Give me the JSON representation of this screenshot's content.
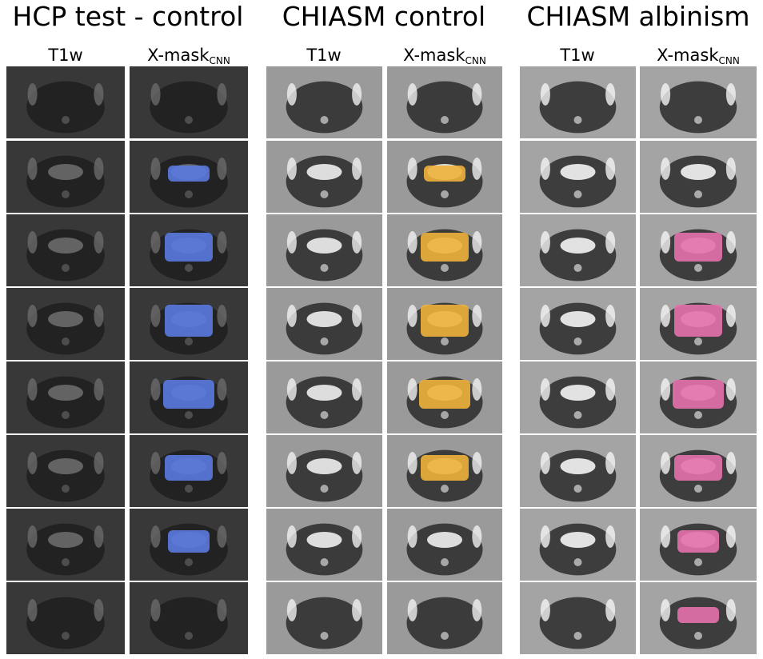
{
  "groups": [
    {
      "title": "HCP test - control",
      "columns": [
        {
          "label": "T1w"
        },
        {
          "label": "X-mask",
          "subscript": "CNN"
        }
      ]
    },
    {
      "title": "CHIASM control",
      "columns": [
        {
          "label": "T1w"
        },
        {
          "label": "X-mask",
          "subscript": "CNN"
        }
      ]
    },
    {
      "title": "CHIASM albinism",
      "columns": [
        {
          "label": "T1w"
        },
        {
          "label": "X-mask",
          "subscript": "CNN"
        }
      ]
    }
  ]
}
